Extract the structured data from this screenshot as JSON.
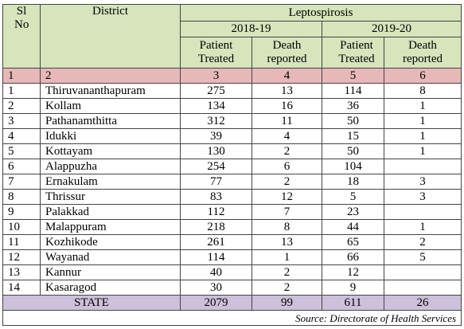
{
  "header": {
    "sl_no": "Sl No",
    "district": "District",
    "disease": "Leptospirosis",
    "periods": [
      "2018-19",
      "2019-20"
    ],
    "columns": [
      "Patient Treated",
      "Death reported",
      "Patient Treated",
      "Death reported"
    ]
  },
  "index_row": [
    "1",
    "2",
    "3",
    "4",
    "5",
    "6"
  ],
  "rows": [
    [
      "1",
      "Thiruvananthapuram",
      275,
      13,
      114,
      8
    ],
    [
      "2",
      "Kollam",
      134,
      16,
      36,
      1
    ],
    [
      "3",
      "Pathanamthitta",
      312,
      11,
      50,
      1
    ],
    [
      "4",
      "Idukki",
      39,
      4,
      15,
      1
    ],
    [
      "5",
      "Kottayam",
      130,
      2,
      50,
      1
    ],
    [
      "6",
      "Alappuzha",
      254,
      6,
      104,
      null
    ],
    [
      "7",
      "Ernakulam",
      77,
      2,
      18,
      3
    ],
    [
      "8",
      "Thrissur",
      83,
      12,
      5,
      3
    ],
    [
      "9",
      "Palakkad",
      112,
      7,
      23,
      null
    ],
    [
      "10",
      "Malappuram",
      218,
      8,
      44,
      1
    ],
    [
      "11",
      "Kozhikode",
      261,
      13,
      65,
      2
    ],
    [
      "12",
      "Wayanad",
      114,
      1,
      66,
      5
    ],
    [
      "13",
      "Kannur",
      40,
      2,
      12,
      null
    ],
    [
      "14",
      "Kasaragod",
      30,
      2,
      9,
      null
    ]
  ],
  "state_row": {
    "label": "STATE",
    "values": [
      2079,
      99,
      611,
      26
    ]
  },
  "source": "Source: Directorate of Health Services"
}
